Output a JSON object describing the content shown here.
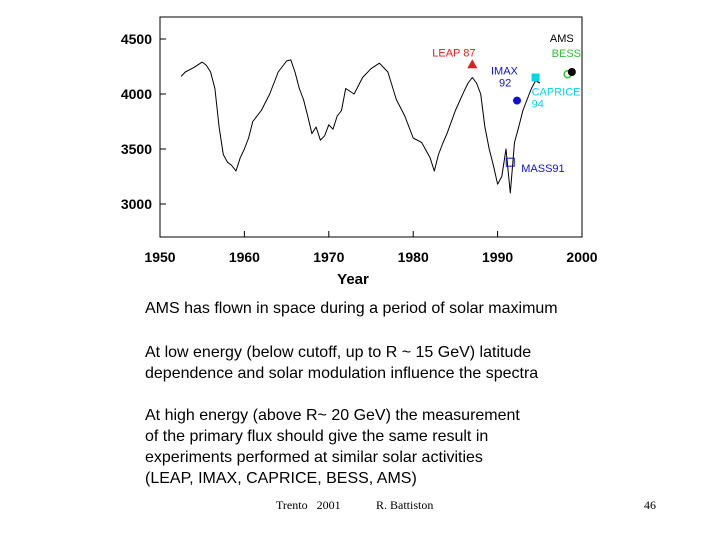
{
  "chart_data": {
    "type": "line",
    "xlabel": "Year",
    "ylabel": "",
    "xlim": [
      1950,
      2000
    ],
    "ylim": [
      2700,
      4700
    ],
    "x_ticks": [
      1950,
      1960,
      1970,
      1980,
      1990,
      2000
    ],
    "y_ticks": [
      3000,
      3500,
      4000,
      4500
    ],
    "grid": false,
    "series": [
      {
        "name": "",
        "color": "#000000",
        "x": [
          1952.5,
          1953,
          1954,
          1955,
          1955.5,
          1956,
          1956.5,
          1957,
          1957.5,
          1958,
          1958.5,
          1959,
          1959.5,
          1960,
          1960.5,
          1961,
          1962,
          1963,
          1964,
          1965,
          1965.5,
          1966,
          1966.5,
          1967,
          1967.5,
          1968,
          1968.5,
          1969,
          1969.5,
          1970,
          1970.5,
          1971,
          1971.5,
          1972,
          1973,
          1974,
          1975,
          1976,
          1977,
          1978,
          1979,
          1980,
          1981,
          1982,
          1982.5,
          1983,
          1983.5,
          1984,
          1985,
          1986,
          1986.5,
          1987,
          1987.5,
          1988,
          1988.5,
          1989,
          1989.5,
          1990,
          1990.5,
          1991,
          1991.5,
          1992,
          1992.5,
          1993,
          1993.5,
          1994,
          1994.5,
          1995
        ],
        "values": [
          4160,
          4200,
          4240,
          4290,
          4260,
          4200,
          4050,
          3700,
          3450,
          3380,
          3350,
          3300,
          3420,
          3500,
          3600,
          3750,
          3850,
          4000,
          4200,
          4300,
          4310,
          4200,
          4050,
          3950,
          3800,
          3640,
          3700,
          3580,
          3620,
          3720,
          3680,
          3800,
          3850,
          4050,
          4000,
          4150,
          4230,
          4280,
          4200,
          3950,
          3800,
          3600,
          3560,
          3420,
          3300,
          3450,
          3550,
          3640,
          3850,
          4020,
          4100,
          4150,
          4100,
          4000,
          3700,
          3500,
          3350,
          3180,
          3250,
          3500,
          3100,
          3560,
          3700,
          3850,
          3950,
          4050,
          4120,
          4100
        ]
      }
    ],
    "markers": [
      {
        "label": "LEAP 87",
        "x": 1987,
        "y": 4270,
        "shape": "triangle",
        "color": "#e02020"
      },
      {
        "label": "IMAX 92",
        "x": 1992.3,
        "y": 3940,
        "shape": "circle",
        "color": "#1010d0"
      },
      {
        "label": "CAPRICE 94",
        "x": 1994.5,
        "y": 4150,
        "shape": "square",
        "color": "#00d8e8"
      },
      {
        "label": "BESS",
        "x": 1998.3,
        "y": 4180,
        "shape": "circle-open",
        "color": "#30c030"
      },
      {
        "label": "AMS",
        "x": 1998.8,
        "y": 4200,
        "shape": "circle",
        "color": "#000000"
      },
      {
        "label": "MASS91",
        "x": 1991.5,
        "y": 3380,
        "shape": "square-open",
        "color": "#1010d0"
      }
    ]
  },
  "text": {
    "line1": "AMS has flown  in space during a period of solar maximum",
    "para2_l1": "At low energy (below cutoff, up to R ~ 15 GeV) latitude",
    "para2_l2": "dependence and solar modulation influence the spectra",
    "para3_l1": "At  high energy (above R~ 20 GeV)  the measurement",
    "para3_l2": "of the primary flux should   give the same result in",
    "para3_l3": "experiments performed at similar solar activities",
    "para3_l4": "(LEAP, IMAX, CAPRICE, BESS, AMS)"
  },
  "footer": {
    "location": "Trento   2001",
    "author": "R. Battiston",
    "page": "46"
  }
}
